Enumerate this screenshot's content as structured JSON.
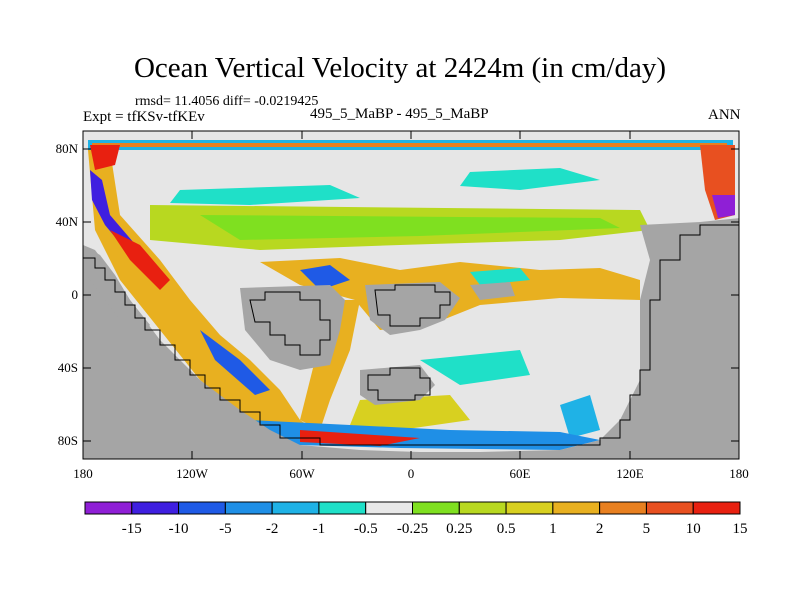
{
  "title": "Ocean Vertical Velocity at 2424m (in cm/day)",
  "stats": "rmsd= 11.4056 diff= -0.0219425",
  "expt": "Expt = tfKSv-tfKEv",
  "center_label": "495_5_MaBP - 495_5_MaBP",
  "season": "ANN",
  "y_ticks": [
    "80N",
    "40N",
    "0",
    "40S",
    "80S"
  ],
  "x_ticks": [
    "180",
    "120W",
    "60W",
    "0",
    "60E",
    "120E",
    "180"
  ],
  "colorbar": {
    "colors": [
      "#8f1fd6",
      "#3f1fe0",
      "#1f5ae6",
      "#1f8fe6",
      "#1fb2e6",
      "#1fe0c8",
      "#e8e8e8",
      "#7fe020",
      "#b8d820",
      "#d8d020",
      "#e8b020",
      "#e88020",
      "#e85020",
      "#e82010"
    ],
    "labels": [
      "-15",
      "-10",
      "-5",
      "-2",
      "-1",
      "-0.5",
      "-0.25",
      "0.25",
      "0.5",
      "1",
      "2",
      "5",
      "10",
      "15"
    ]
  },
  "colors": {
    "land": "#a5a5a5",
    "neutral": "#e6e6e6"
  }
}
